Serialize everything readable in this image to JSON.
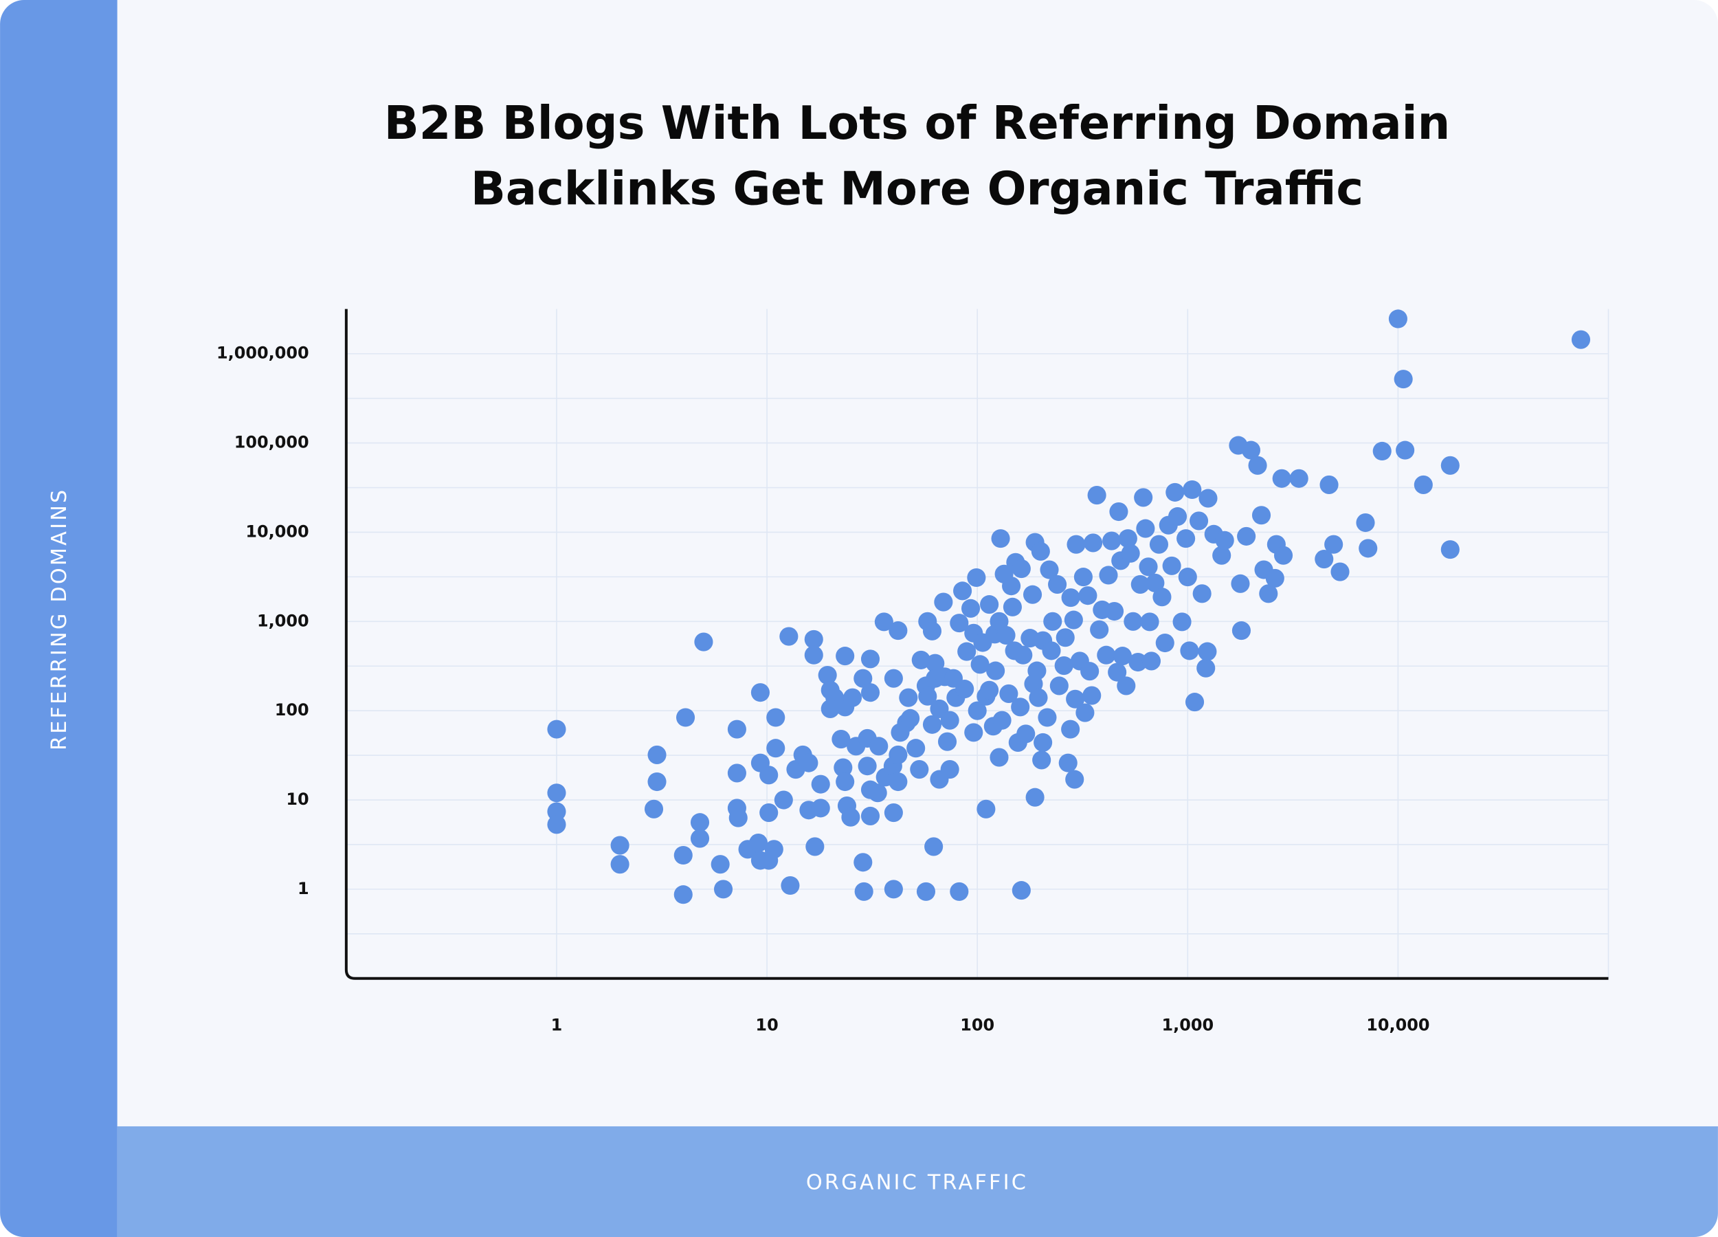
{
  "chart_data": {
    "type": "scatter",
    "title": [
      "B2B Blogs With Lots of Referring Domain",
      "Backlinks Get More Organic Traffic"
    ],
    "x_label": "ORGANIC TRAFFIC",
    "y_label": "REFERRING DOMAINS",
    "log_x": true,
    "log_y": true,
    "grid": true,
    "color": "#5b8fe2",
    "xlim": [
      0.1,
      100000
    ],
    "ylim": [
      0.1,
      3000000
    ],
    "xticks": [
      1,
      10,
      100,
      {
        "value": 1000,
        "label": "1,000"
      },
      {
        "value": 10000,
        "label": "10,000"
      }
    ],
    "yticks": [
      1,
      10,
      100,
      {
        "value": 1000,
        "label": "1,000"
      },
      {
        "value": 10000,
        "label": "10,000"
      },
      {
        "value": 100000,
        "label": "100,000"
      },
      {
        "value": 1000000,
        "label": "1,000,000"
      }
    ],
    "x": [
      1,
      1,
      1,
      1,
      2.0,
      2.0,
      3.0,
      3.0,
      2.9,
      4.0,
      4.0,
      4.1,
      4.8,
      4.8,
      5.0,
      6.0,
      6.2,
      7.2,
      7.2,
      7.2,
      7.3,
      8.1,
      9.1,
      9.3,
      9.3,
      9.3,
      10.2,
      10.2,
      10.2,
      10.8,
      11,
      11,
      12,
      12.7,
      12.9,
      13.7,
      14.8,
      15.8,
      15.8,
      16.7,
      16.7,
      16.9,
      18,
      18,
      19.4,
      20,
      21,
      20,
      22.5,
      23,
      23.5,
      23.5,
      23.5,
      24,
      25,
      25.5,
      26.5,
      28.6,
      28.9,
      30,
      30,
      28.6,
      31,
      31,
      31,
      31,
      33.6,
      34,
      36,
      36.5,
      39.7,
      40,
      40,
      40,
      42,
      42,
      42,
      43,
      46,
      47,
      48,
      51,
      53,
      54,
      57,
      57,
      58,
      58,
      61,
      61,
      62,
      63,
      63,
      66,
      66,
      69,
      70,
      72,
      74,
      74,
      77,
      79,
      82,
      82,
      85,
      87,
      89,
      93,
      96,
      96,
      99,
      100,
      103,
      106,
      110,
      110,
      114,
      114,
      119,
      121,
      122,
      127,
      127,
      129,
      131,
      134,
      137,
      141,
      145,
      147,
      150,
      152,
      156,
      160,
      162,
      162,
      165,
      170,
      178,
      183,
      185,
      188,
      188,
      192,
      195,
      200,
      202,
      205,
      205,
      215,
      220,
      225,
      228,
      240,
      245,
      258,
      262,
      270,
      278,
      292,
      277,
      287,
      290,
      295,
      307,
      319,
      325,
      335,
      342,
      350,
      355,
      370,
      380,
      392,
      410,
      420,
      435,
      448,
      462,
      470,
      480,
      490,
      510,
      520,
      535,
      550,
      580,
      595,
      615,
      630,
      650,
      660,
      672,
      700,
      730,
      755,
      780,
      810,
      840,
      870,
      895,
      940,
      980,
      1000,
      1020,
      1050,
      1080,
      1130,
      1170,
      1220,
      1240,
      1250,
      1330,
      1450,
      1500,
      1740,
      1780,
      1800,
      1900,
      2000,
      2150,
      2240,
      2300,
      2420,
      2600,
      2640,
      2800,
      2850,
      3380,
      4450,
      4700,
      4940,
      5300,
      7000,
      7200,
      8400,
      10000,
      10600,
      10800,
      13200,
      17700,
      17700,
      74000
    ],
    "values": [
      62,
      12,
      7.4,
      5.3,
      3.1,
      1.9,
      32,
      16,
      7.9,
      2.4,
      0.87,
      84,
      5.6,
      3.7,
      590,
      1.9,
      1.0,
      62,
      20,
      8.1,
      6.3,
      2.8,
      3.3,
      160,
      26,
      2.1,
      19,
      7.2,
      2.1,
      2.8,
      84,
      38,
      10,
      680,
      1.1,
      22,
      32,
      26,
      7.7,
      630,
      420,
      3.0,
      15,
      8.1,
      250,
      170,
      140,
      105,
      48,
      23,
      16,
      410,
      110,
      8.6,
      6.4,
      140,
      40,
      2.0,
      0.94,
      24,
      49,
      230,
      380,
      160,
      13,
      6.6,
      12,
      40,
      990,
      18,
      24,
      230,
      1.0,
      7.2,
      790,
      32,
      16,
      57,
      73,
      140,
      82,
      38,
      22,
      370,
      190,
      0.94,
      1000,
      145,
      780,
      70,
      3.0,
      340,
      230,
      17,
      105,
      1650,
      240,
      45,
      78,
      22,
      230,
      140,
      0.94,
      960,
      2200,
      175,
      460,
      1400,
      740,
      57,
      3100,
      100,
      330,
      580,
      145,
      7.9,
      1550,
      170,
      67,
      720,
      280,
      1000,
      30,
      8500,
      78,
      3400,
      700,
      155,
      2500,
      1450,
      470,
      4600,
      44,
      110,
      0.97,
      3900,
      420,
      55,
      650,
      2000,
      200,
      7700,
      10.7,
      280,
      140,
      6100,
      28,
      44,
      610,
      84,
      3800,
      470,
      1000,
      2600,
      190,
      320,
      660,
      26,
      1850,
      135,
      62,
      1040,
      17,
      7300,
      360,
      3150,
      95,
      1950,
      277,
      148,
      7600,
      26000,
      810,
      1350,
      420,
      3300,
      8000,
      1300,
      270,
      17000,
      4800,
      410,
      190,
      8500,
      5800,
      1000,
      350,
      2600,
      24500,
      11000,
      4100,
      990,
      360,
      2700,
      7300,
      1880,
      575,
      12000,
      4200,
      28000,
      15000,
      990,
      8500,
      3150,
      470,
      30000,
      125,
      13400,
      2050,
      300,
      460,
      24000,
      9500,
      5500,
      8100,
      94000,
      2650,
      790,
      9000,
      83000,
      56000,
      15500,
      3800,
      2050,
      3050,
      7300,
      40000,
      5500,
      40000,
      5000,
      34000,
      7300,
      3600,
      12800,
      6600,
      81000,
      2460000,
      520000,
      83000,
      34000,
      56000,
      6400,
      1440000
    ]
  }
}
